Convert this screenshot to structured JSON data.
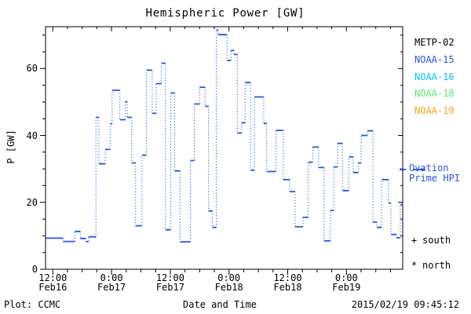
{
  "title": "Hemispheric Power [GW]",
  "footer": {
    "credit": "Plot: CCMC",
    "timestamp": "2015/02/19 09:45:12"
  },
  "legend": {
    "satellites": [
      {
        "label": "METP-02",
        "color": "#000000"
      },
      {
        "label": "NOAA-15",
        "color": "#2A55E0"
      },
      {
        "label": "NOAA-16",
        "color": "#00C8F0"
      },
      {
        "label": "NOAA-18",
        "color": "#5FE870"
      },
      {
        "label": "NOAA-19",
        "color": "#FFA420"
      }
    ],
    "ovation_label": "Ovation Prime HPI",
    "south": {
      "marker": "+",
      "label": "south"
    },
    "north": {
      "marker": "*",
      "label": "north"
    }
  },
  "colors": {
    "line": "#2A55E0",
    "axis": "#000000",
    "background": "#ffffff"
  },
  "chart_data": {
    "type": "line",
    "subtype": "dotted-step-histogram",
    "title": "Hemispheric Power [GW]",
    "xlabel": "Date and Time",
    "ylabel": "P [GW]",
    "ylim": [
      0,
      72.5
    ],
    "y_major_ticks": [
      0,
      20,
      40,
      60
    ],
    "y_minor_interval": 5,
    "x_unit": "hours since 2015-02-16 00:00",
    "xlim_hours": [
      10.5,
      83.5
    ],
    "x_minor_interval_hours": 3,
    "x_major_ticks": [
      {
        "hour": 12,
        "time": "12:00",
        "date": "Feb16"
      },
      {
        "hour": 24,
        "time": "0:00",
        "date": "Feb17"
      },
      {
        "hour": 36,
        "time": "12:00",
        "date": "Feb17"
      },
      {
        "hour": 48,
        "time": "0:00",
        "date": "Feb18"
      },
      {
        "hour": 60,
        "time": "12:00",
        "date": "Feb18"
      },
      {
        "hour": 72,
        "time": "0:00",
        "date": "Feb19"
      }
    ],
    "grid": false,
    "legend_position": "right",
    "series": [
      {
        "name": "Ovation Prime HPI",
        "color": "#2A55E0",
        "style": "solid horizontals, dotted verticals",
        "points_hour_gw": [
          [
            10.6,
            9.3
          ],
          [
            14.1,
            8.3
          ],
          [
            16.5,
            11.3
          ],
          [
            17.6,
            9.2
          ],
          [
            18.7,
            8.3
          ],
          [
            19.3,
            9.7
          ],
          [
            20.8,
            45.4
          ],
          [
            21.4,
            31.5
          ],
          [
            22.7,
            35.8
          ],
          [
            23.7,
            43.5
          ],
          [
            24.1,
            53.5
          ],
          [
            25.7,
            44.7
          ],
          [
            26.8,
            50.1
          ],
          [
            27.2,
            45.4
          ],
          [
            28.1,
            31.8
          ],
          [
            28.9,
            13.0
          ],
          [
            30.2,
            34.1
          ],
          [
            31.1,
            59.5
          ],
          [
            32.3,
            46.6
          ],
          [
            33.1,
            55.5
          ],
          [
            34.2,
            61.6
          ],
          [
            35.0,
            11.8
          ],
          [
            36.1,
            52.7
          ],
          [
            36.9,
            29.4
          ],
          [
            38.0,
            8.2
          ],
          [
            40.1,
            32.5
          ],
          [
            40.9,
            49.4
          ],
          [
            42.0,
            54.4
          ],
          [
            43.1,
            48.7
          ],
          [
            43.8,
            17.4
          ],
          [
            44.6,
            12.5
          ],
          [
            45.4,
            71.5
          ],
          [
            45.8,
            70.1
          ],
          [
            47.6,
            62.4
          ],
          [
            48.4,
            65.4
          ],
          [
            49.0,
            64.2
          ],
          [
            49.7,
            40.7
          ],
          [
            50.6,
            43.8
          ],
          [
            51.3,
            55.8
          ],
          [
            52.4,
            29.6
          ],
          [
            53.2,
            51.5
          ],
          [
            55.1,
            43.6
          ],
          [
            55.7,
            29.2
          ],
          [
            57.6,
            41.5
          ],
          [
            59.1,
            26.8
          ],
          [
            60.4,
            23.2
          ],
          [
            61.5,
            12.7
          ],
          [
            63.1,
            15.5
          ],
          [
            64.2,
            32.0
          ],
          [
            65.1,
            36.5
          ],
          [
            66.3,
            30.4
          ],
          [
            67.4,
            8.5
          ],
          [
            68.7,
            17.6
          ],
          [
            69.4,
            30.6
          ],
          [
            70.2,
            37.6
          ],
          [
            71.2,
            23.5
          ],
          [
            72.5,
            33.6
          ],
          [
            73.4,
            28.9
          ],
          [
            74.4,
            31.8
          ],
          [
            75.0,
            40.0
          ],
          [
            76.3,
            41.4
          ],
          [
            77.4,
            14.1
          ],
          [
            78.2,
            12.5
          ],
          [
            79.2,
            26.8
          ],
          [
            80.6,
            19.8
          ],
          [
            81.1,
            10.4
          ],
          [
            82.2,
            9.4
          ],
          [
            83.0,
            19.3
          ]
        ]
      }
    ]
  }
}
